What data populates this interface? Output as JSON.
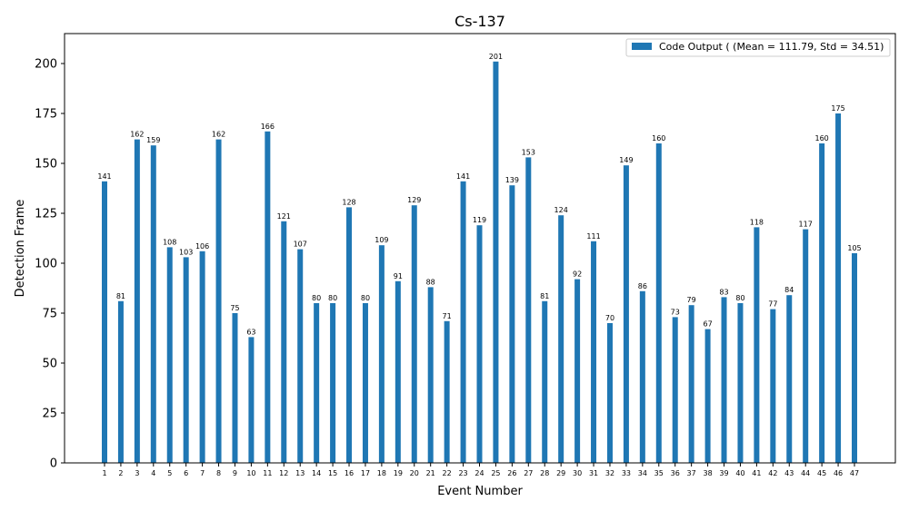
{
  "chart_data": {
    "type": "bar",
    "title": "Cs-137",
    "xlabel": "Event Number",
    "ylabel": "Detection Frame",
    "ylim": [
      0,
      215
    ],
    "yticks": [
      0,
      25,
      50,
      75,
      100,
      125,
      150,
      175,
      200
    ],
    "grid": false,
    "legend_position": "top-right",
    "categories": [
      "1",
      "2",
      "3",
      "4",
      "5",
      "6",
      "7",
      "8",
      "9",
      "10",
      "11",
      "12",
      "13",
      "14",
      "15",
      "16",
      "17",
      "18",
      "19",
      "20",
      "21",
      "22",
      "23",
      "24",
      "25",
      "26",
      "27",
      "28",
      "29",
      "30",
      "31",
      "32",
      "33",
      "34",
      "35",
      "36",
      "37",
      "38",
      "39",
      "40",
      "41",
      "42",
      "43",
      "44",
      "45",
      "46",
      "47"
    ],
    "series": [
      {
        "name": "Code Output ( (Mean = 111.79, Std = 34.51)",
        "color": "#1f77b4",
        "values": [
          141,
          81,
          162,
          159,
          108,
          103,
          106,
          162,
          75,
          63,
          166,
          121,
          107,
          80,
          80,
          128,
          80,
          109,
          91,
          129,
          88,
          71,
          141,
          119,
          201,
          139,
          153,
          81,
          124,
          92,
          111,
          70,
          149,
          86,
          160,
          73,
          79,
          67,
          83,
          80,
          118,
          77,
          84,
          117,
          160,
          175,
          105
        ]
      }
    ]
  }
}
